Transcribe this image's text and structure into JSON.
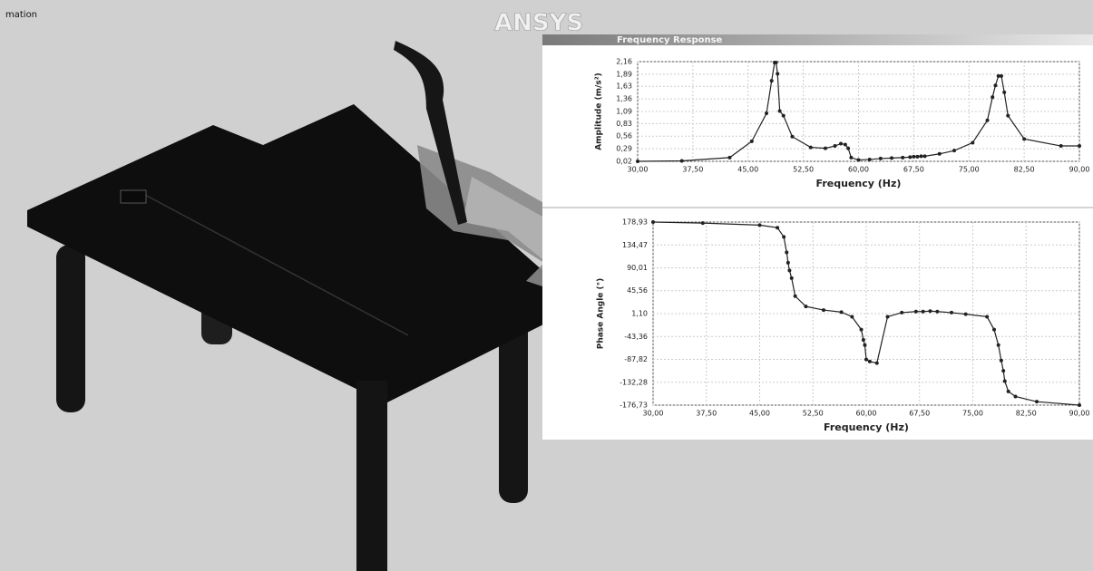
{
  "corner_label": "mation",
  "logo": "ANSYS",
  "panel_title": "Frequency Response",
  "chart_data": [
    {
      "type": "line",
      "y_label": "Amplitude (m/s²)",
      "x_label": "Frequency (Hz)",
      "color": "#222222",
      "grid": true,
      "xlim": [
        30,
        90
      ],
      "ylim": [
        0.02,
        2.16
      ],
      "xticks": [
        {
          "value": 30,
          "label": "30,00"
        },
        {
          "value": 37.5,
          "label": "37,50"
        },
        {
          "value": 45,
          "label": "45,00"
        },
        {
          "value": 52.5,
          "label": "52,50"
        },
        {
          "value": 60,
          "label": "60,00"
        },
        {
          "value": 67.5,
          "label": "67,50"
        },
        {
          "value": 75,
          "label": "75,00"
        },
        {
          "value": 82.5,
          "label": "82,50"
        },
        {
          "value": 90,
          "label": "90,00"
        }
      ],
      "yticks": [
        {
          "value": 0.02,
          "label": "0,02"
        },
        {
          "value": 0.29,
          "label": "0,29"
        },
        {
          "value": 0.56,
          "label": "0,56"
        },
        {
          "value": 0.83,
          "label": "0,83"
        },
        {
          "value": 1.09,
          "label": "1,09"
        },
        {
          "value": 1.36,
          "label": "1,36"
        },
        {
          "value": 1.63,
          "label": "1,63"
        },
        {
          "value": 1.89,
          "label": "1,89"
        },
        {
          "value": 2.16,
          "label": "2,16"
        }
      ],
      "x": [
        30,
        36,
        42.5,
        45.5,
        47.5,
        48.2,
        48.6,
        48.8,
        49.0,
        49.3,
        49.8,
        51,
        53.5,
        55.5,
        56.8,
        57.6,
        58.2,
        58.6,
        59,
        60,
        61.5,
        63,
        64.5,
        66,
        67,
        67.5,
        68,
        68.5,
        69,
        71,
        73,
        75.5,
        77.5,
        78.2,
        78.6,
        79,
        79.4,
        79.8,
        80.3,
        82.5,
        87.5,
        90
      ],
      "values": [
        0.02,
        0.03,
        0.1,
        0.45,
        1.05,
        1.75,
        2.14,
        2.14,
        1.9,
        1.1,
        1.0,
        0.55,
        0.32,
        0.3,
        0.35,
        0.4,
        0.38,
        0.3,
        0.1,
        0.05,
        0.06,
        0.08,
        0.09,
        0.1,
        0.11,
        0.12,
        0.12,
        0.13,
        0.13,
        0.18,
        0.25,
        0.42,
        0.9,
        1.4,
        1.65,
        1.85,
        1.85,
        1.5,
        1.0,
        0.5,
        0.35,
        0.35
      ]
    },
    {
      "type": "line",
      "y_label": "Phase Angle (°)",
      "x_label": "Frequency (Hz)",
      "color": "#222222",
      "grid": true,
      "xlim": [
        30,
        90
      ],
      "ylim": [
        -176.73,
        178.93
      ],
      "xticks": [
        {
          "value": 30,
          "label": "30,00"
        },
        {
          "value": 37.5,
          "label": "37,50"
        },
        {
          "value": 45,
          "label": "45,00"
        },
        {
          "value": 52.5,
          "label": "52,50"
        },
        {
          "value": 60,
          "label": "60,00"
        },
        {
          "value": 67.5,
          "label": "67,50"
        },
        {
          "value": 75,
          "label": "75,00"
        },
        {
          "value": 82.5,
          "label": "82,50"
        },
        {
          "value": 90,
          "label": "90,00"
        }
      ],
      "yticks": [
        {
          "value": 178.93,
          "label": "178,93"
        },
        {
          "value": 134.47,
          "label": "134,47"
        },
        {
          "value": 90.01,
          "label": "90,01"
        },
        {
          "value": 45.56,
          "label": "45,56"
        },
        {
          "value": 1.1,
          "label": "1,10"
        },
        {
          "value": -43.36,
          "label": "-43,36"
        },
        {
          "value": -87.82,
          "label": "-87,82"
        },
        {
          "value": -132.28,
          "label": "-132,28"
        },
        {
          "value": -176.73,
          "label": "-176,73"
        }
      ],
      "x": [
        30,
        37,
        45,
        47.5,
        48.4,
        48.8,
        49.0,
        49.2,
        49.5,
        50,
        51.5,
        54,
        56.5,
        58,
        59.3,
        59.6,
        59.8,
        60,
        60.5,
        61.5,
        63,
        65,
        67,
        68,
        69,
        70,
        72,
        74,
        77,
        78,
        78.6,
        79,
        79.3,
        79.5,
        80,
        81,
        84,
        90
      ],
      "values": [
        178.93,
        177,
        173,
        168,
        150,
        120,
        100,
        85,
        70,
        35,
        15,
        8,
        4,
        -5,
        -30,
        -50,
        -60,
        -88,
        -92,
        -95,
        -5,
        3,
        5,
        5,
        6,
        5,
        3,
        0,
        -5,
        -30,
        -60,
        -90,
        -110,
        -130,
        -150,
        -160,
        -170,
        -176.73
      ]
    }
  ]
}
